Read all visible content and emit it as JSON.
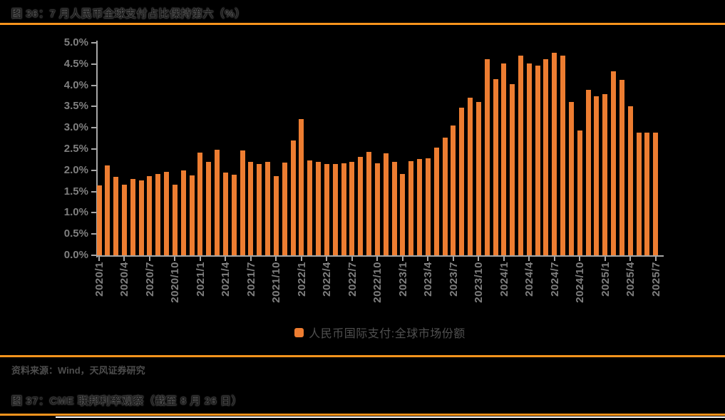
{
  "header": {
    "title": "图 36：7 月人民币全球支付占比保持第六（%）"
  },
  "legend": {
    "label": "人民币国际支付:全球市场份额"
  },
  "footer": {
    "source": "资料来源：Wind，天风证券研究",
    "next_figure_title": "图 37：CME 联邦利率观察（截至 8 月 26 日）"
  },
  "colors": {
    "background": "#000000",
    "bar": "#ED7D31",
    "accent_line": "#F7941D",
    "axis": "#A6A6A6",
    "tick_label": "#7F7F7F",
    "white_line": "#FFFFFF"
  },
  "chart_data": {
    "type": "bar",
    "title": "图 36：7 月人民币全球支付占比保持第六（%）",
    "legend": [
      "人民币国际支付:全球市场份额"
    ],
    "legend_position": "bottom",
    "grid": false,
    "ylim": [
      0,
      5
    ],
    "y_ticks": [
      "0.0%",
      "0.5%",
      "1.0%",
      "1.5%",
      "2.0%",
      "2.5%",
      "3.0%",
      "3.5%",
      "4.0%",
      "4.5%",
      "5.0%"
    ],
    "x_tick_every": 3,
    "x": [
      "2020/1",
      "2020/2",
      "2020/3",
      "2020/4",
      "2020/5",
      "2020/6",
      "2020/7",
      "2020/8",
      "2020/9",
      "2020/10",
      "2020/11",
      "2020/12",
      "2021/1",
      "2021/2",
      "2021/3",
      "2021/4",
      "2021/5",
      "2021/6",
      "2021/7",
      "2021/8",
      "2021/9",
      "2021/10",
      "2021/11",
      "2021/12",
      "2022/1",
      "2022/2",
      "2022/3",
      "2022/4",
      "2022/5",
      "2022/6",
      "2022/7",
      "2022/8",
      "2022/9",
      "2022/10",
      "2022/11",
      "2022/12",
      "2023/1",
      "2023/2",
      "2023/3",
      "2023/4",
      "2023/5",
      "2023/6",
      "2023/7",
      "2023/8",
      "2023/9",
      "2023/10",
      "2023/11",
      "2023/12",
      "2024/1",
      "2024/2",
      "2024/3",
      "2024/4",
      "2024/5",
      "2024/6",
      "2024/7",
      "2024/8",
      "2024/9",
      "2024/10",
      "2024/11",
      "2024/12",
      "2025/1",
      "2025/2",
      "2025/3",
      "2025/4",
      "2025/5",
      "2025/6",
      "2025/7"
    ],
    "values": [
      1.65,
      2.11,
      1.85,
      1.66,
      1.79,
      1.76,
      1.86,
      1.91,
      1.97,
      1.66,
      2.0,
      1.88,
      2.42,
      2.2,
      2.49,
      1.95,
      1.9,
      2.46,
      2.19,
      2.15,
      2.19,
      1.87,
      2.18,
      2.7,
      3.2,
      2.23,
      2.2,
      2.14,
      2.15,
      2.17,
      2.2,
      2.31,
      2.44,
      2.16,
      2.4,
      2.19,
      1.91,
      2.21,
      2.26,
      2.29,
      2.54,
      2.77,
      3.06,
      3.47,
      3.71,
      3.6,
      4.61,
      4.14,
      4.51,
      4.03,
      4.69,
      4.52,
      4.47,
      4.61,
      4.76,
      4.7,
      3.61,
      2.93,
      3.89,
      3.75,
      3.79,
      4.33,
      4.13,
      3.5,
      2.89,
      2.88,
      2.88
    ]
  }
}
